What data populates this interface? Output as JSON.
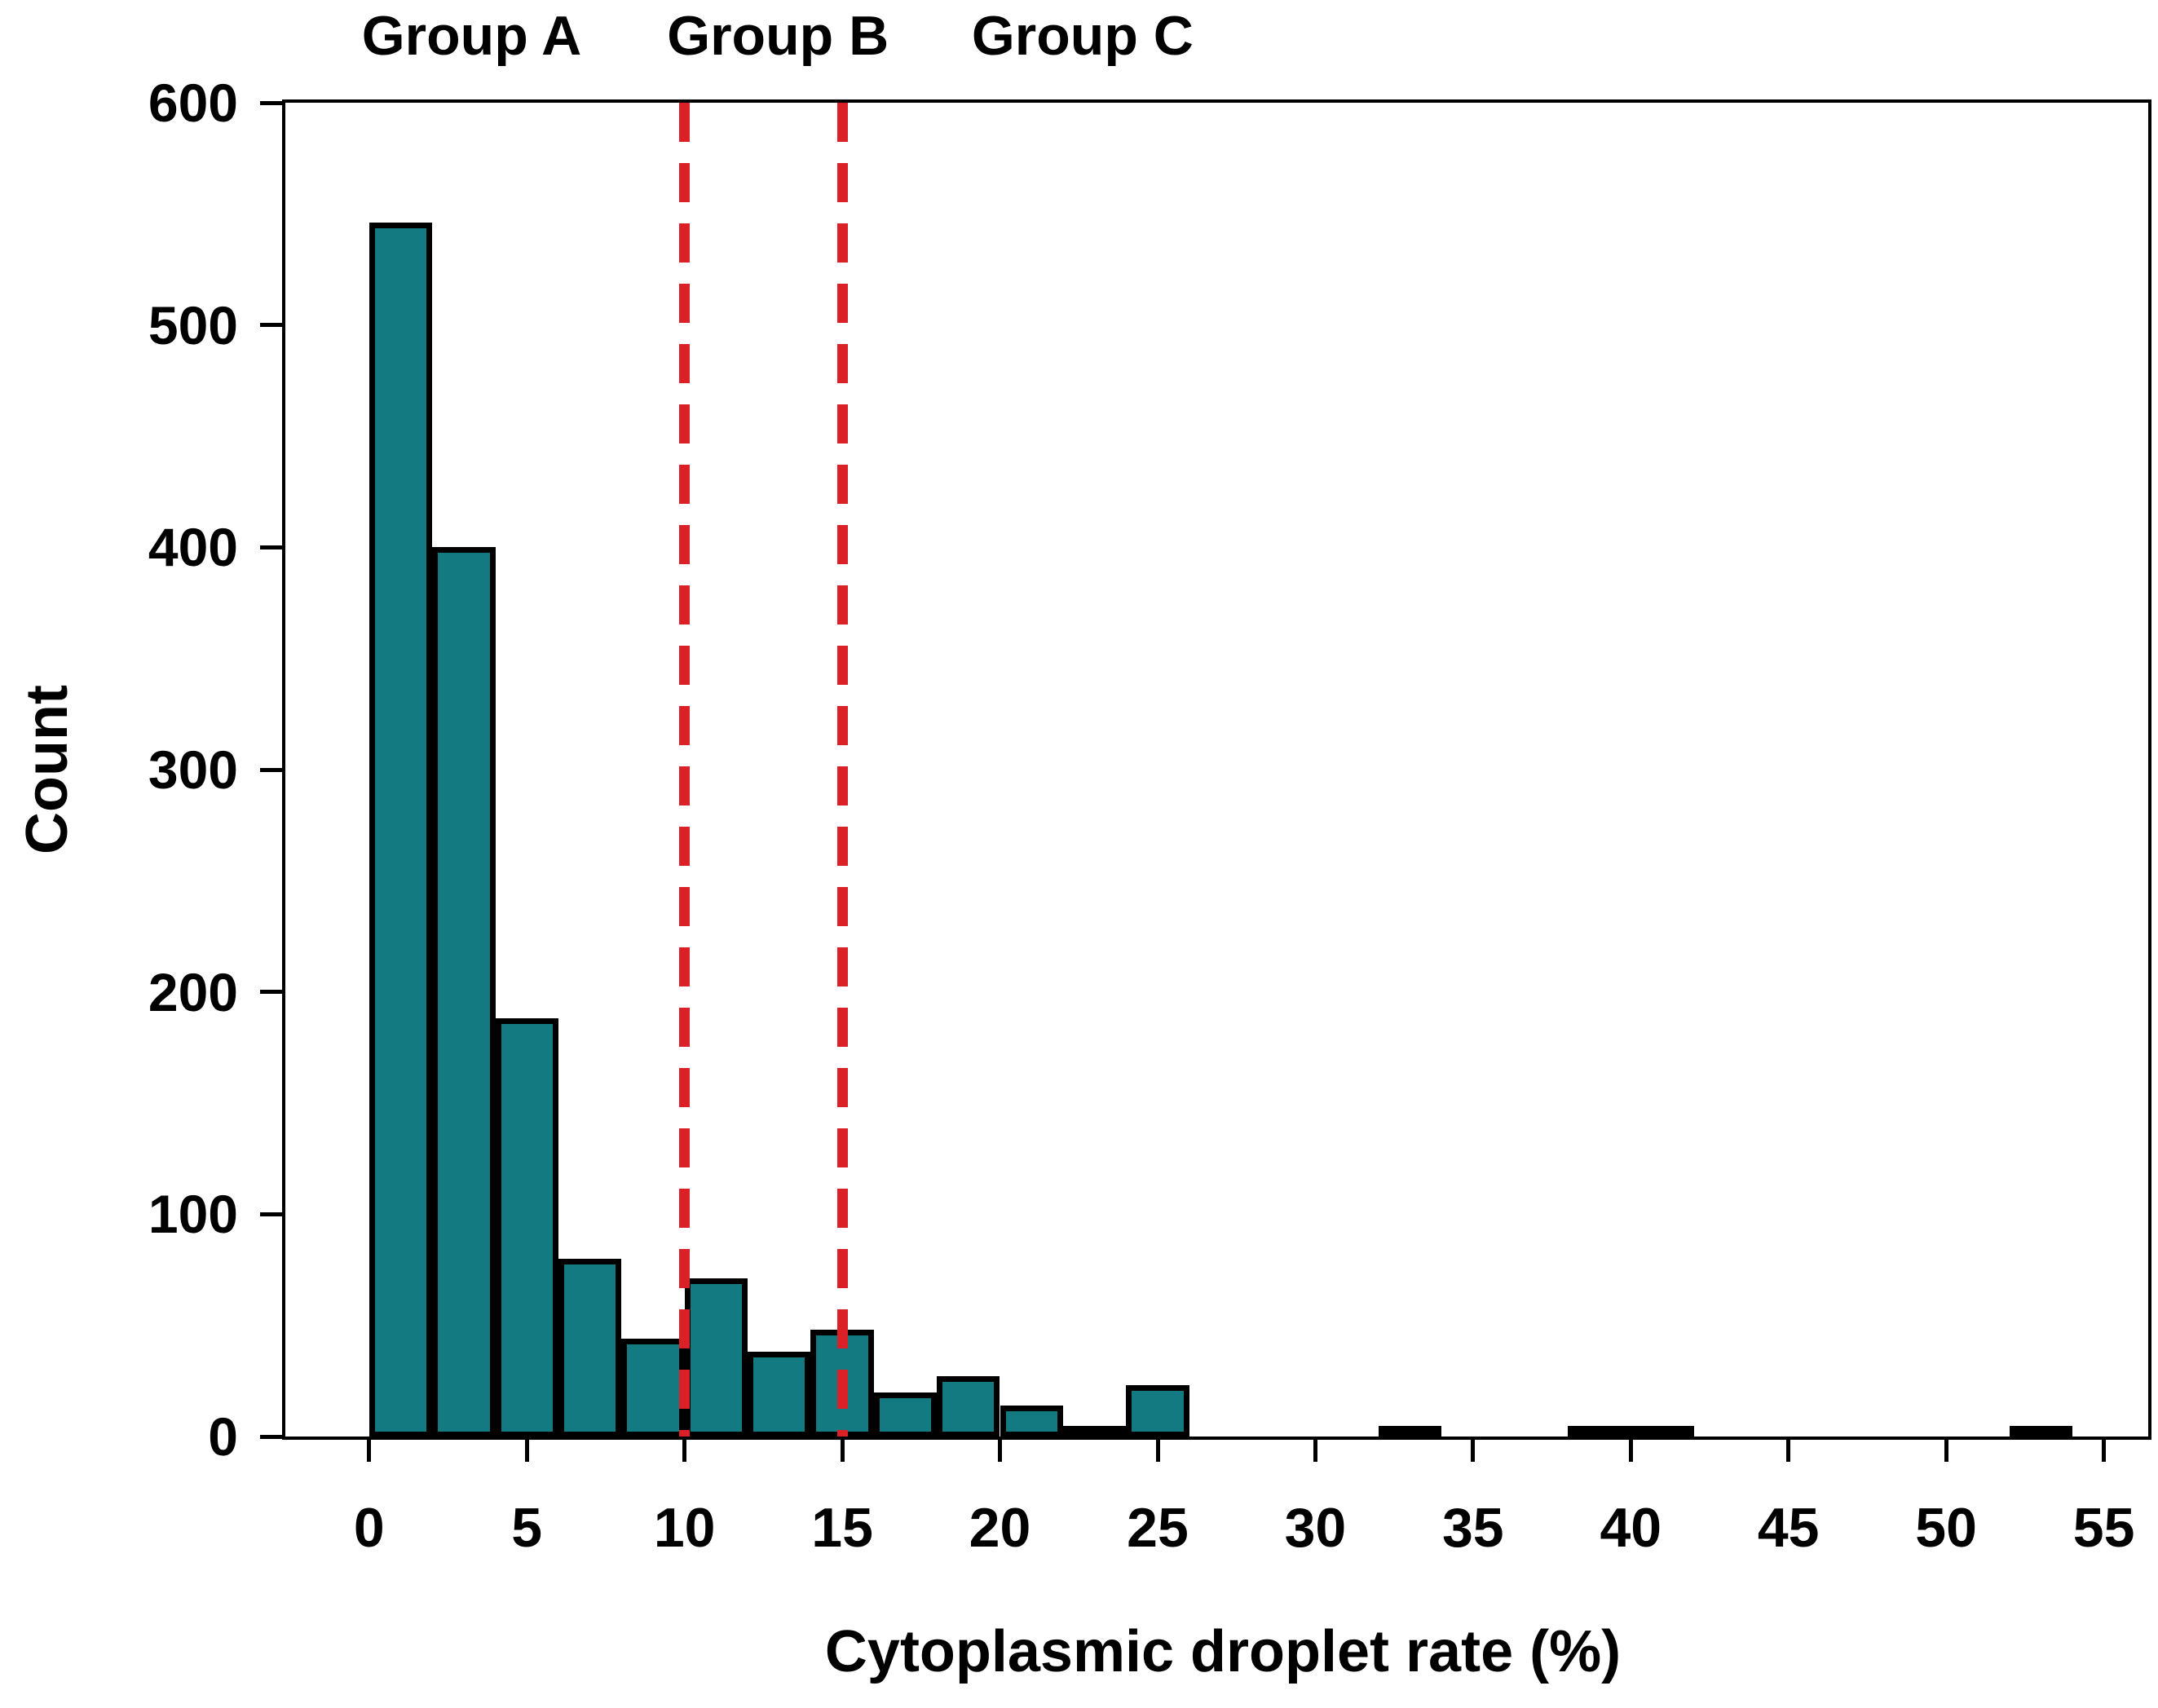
{
  "chart_data": {
    "type": "bar",
    "subtype": "histogram",
    "title": "",
    "xlabel": "Cytoplasmic droplet rate (%)",
    "ylabel": "Count",
    "x_ticks": [
      0,
      5,
      10,
      15,
      20,
      25,
      30,
      35,
      40,
      45,
      50,
      55
    ],
    "y_ticks": [
      0,
      100,
      200,
      300,
      400,
      500,
      600
    ],
    "x_domain": [
      -2.76,
      56.51
    ],
    "y_domain": [
      0,
      600
    ],
    "grid": false,
    "legend": "none",
    "bin_width": 2,
    "bins": [
      {
        "x0": 0,
        "x1": 2,
        "count": 546
      },
      {
        "x0": 2,
        "x1": 4,
        "count": 400
      },
      {
        "x0": 4,
        "x1": 6,
        "count": 188
      },
      {
        "x0": 6,
        "x1": 8,
        "count": 80
      },
      {
        "x0": 8,
        "x1": 10,
        "count": 44
      },
      {
        "x0": 10,
        "x1": 12,
        "count": 71
      },
      {
        "x0": 12,
        "x1": 14,
        "count": 38
      },
      {
        "x0": 14,
        "x1": 16,
        "count": 48
      },
      {
        "x0": 16,
        "x1": 18,
        "count": 20
      },
      {
        "x0": 18,
        "x1": 20,
        "count": 27
      },
      {
        "x0": 20,
        "x1": 22,
        "count": 14
      },
      {
        "x0": 22,
        "x1": 24,
        "count": 3
      },
      {
        "x0": 24,
        "x1": 26,
        "count": 23
      },
      {
        "x0": 32,
        "x1": 34,
        "count": 4
      },
      {
        "x0": 38,
        "x1": 40,
        "count": 4
      },
      {
        "x0": 40,
        "x1": 42,
        "count": 3
      },
      {
        "x0": 52,
        "x1": 54,
        "count": 4
      }
    ],
    "colors": {
      "bar_fill": "#127a80",
      "bar_border": "#000000",
      "axis": "#000000",
      "reference_line": "#da2128",
      "background": "#ffffff"
    },
    "reference_lines": [
      {
        "x": 10,
        "style": "dashed",
        "color": "#da2128"
      },
      {
        "x": 15,
        "style": "dashed",
        "color": "#da2128"
      }
    ],
    "annotations": [
      {
        "text": "Group A",
        "x": 3.25
      },
      {
        "text": "Group B",
        "x": 12.96
      },
      {
        "text": "Group C",
        "x": 22.62
      }
    ]
  }
}
